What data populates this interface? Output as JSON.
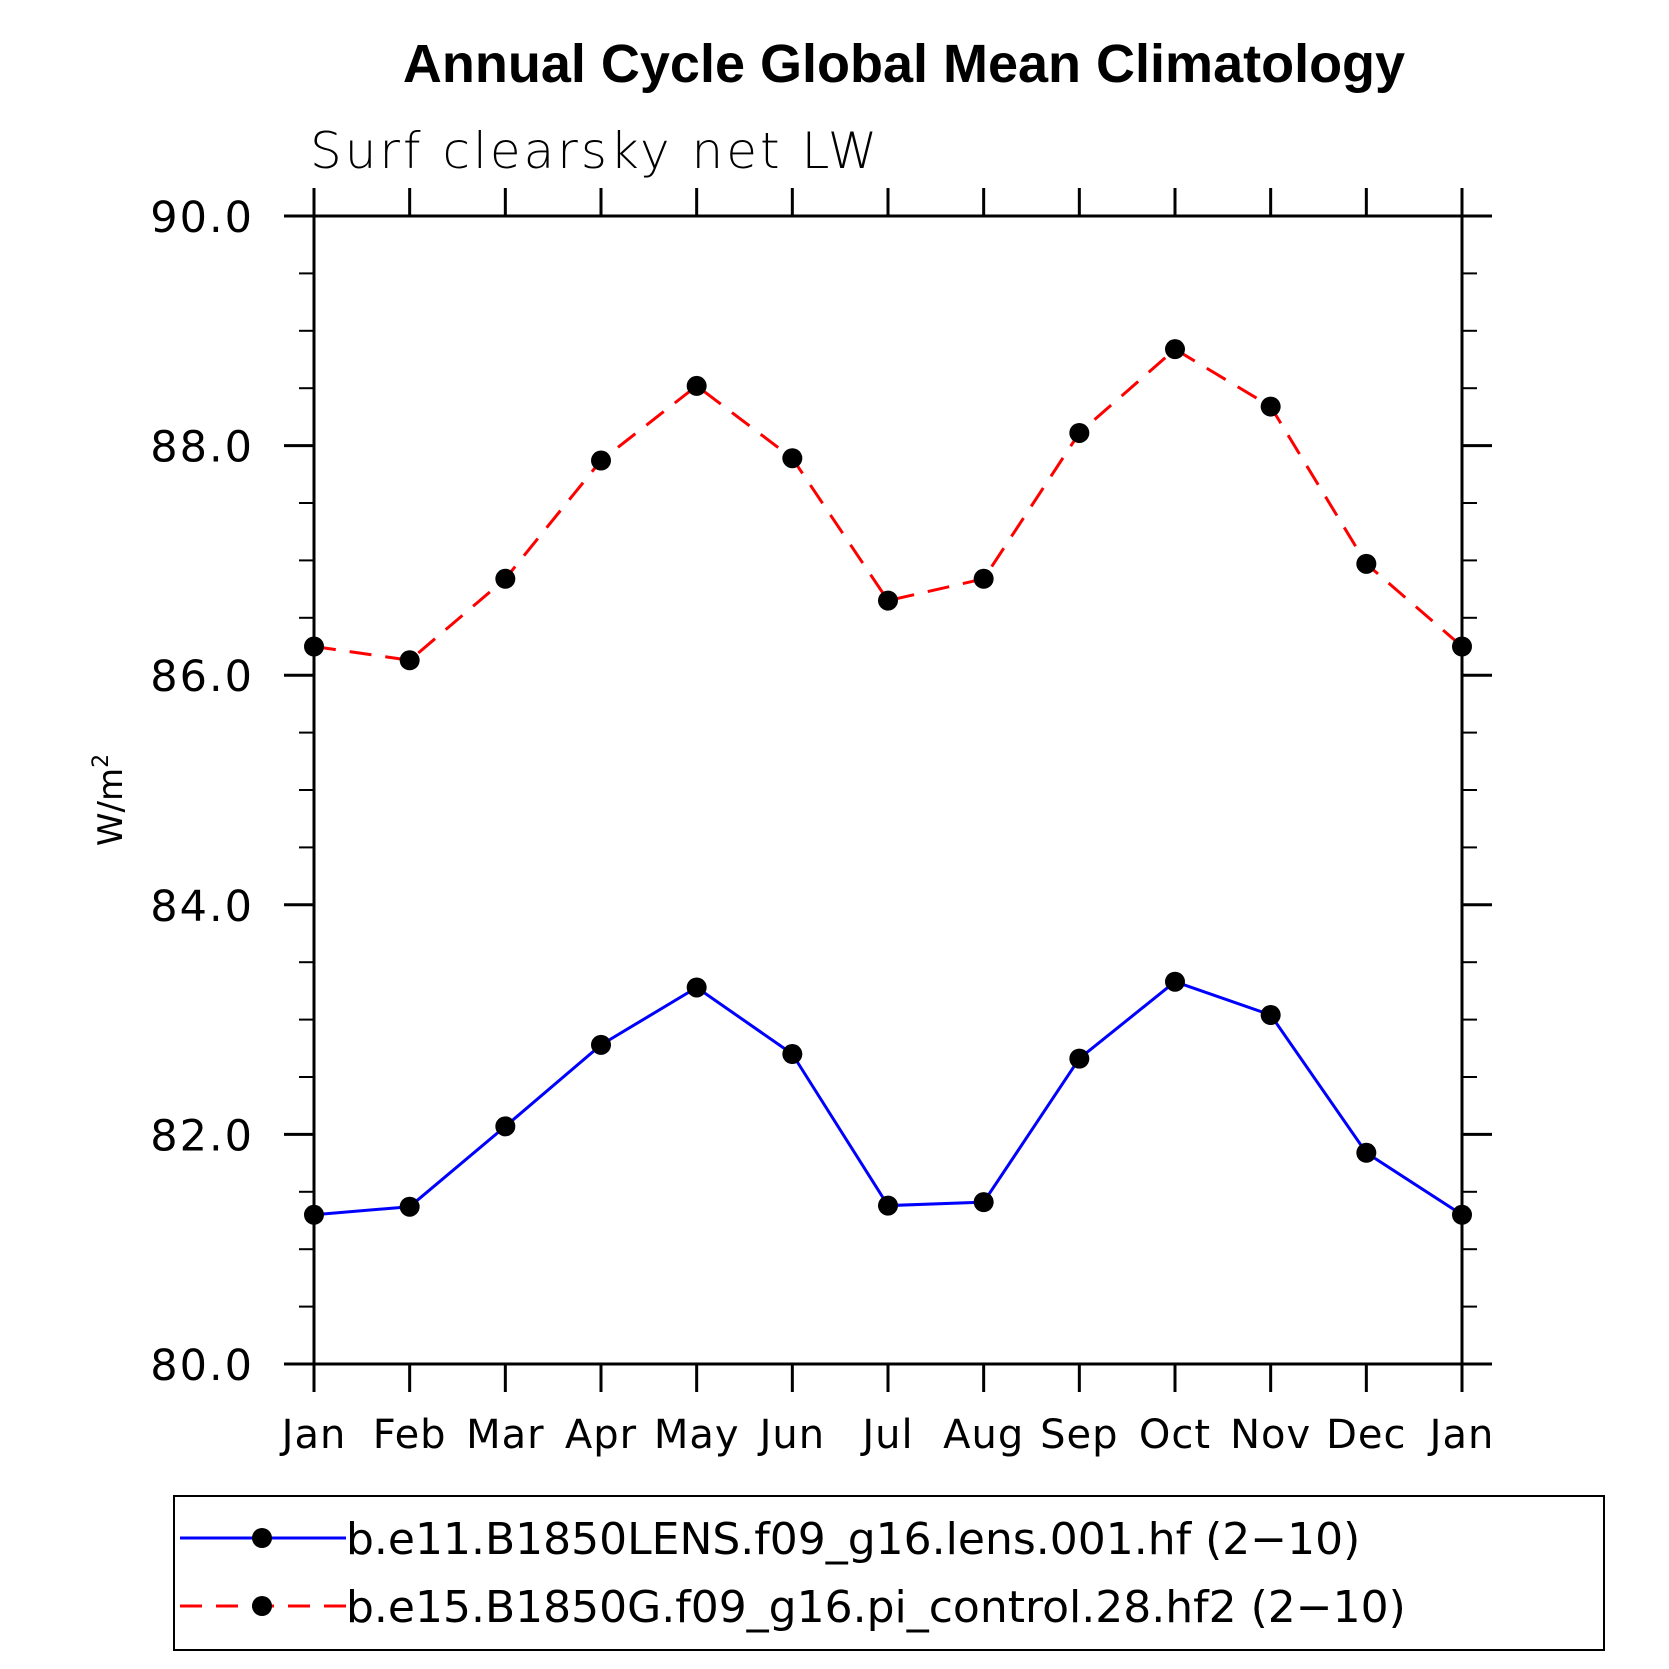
{
  "chart_data": {
    "type": "line",
    "title": "Annual Cycle Global Mean Climatology",
    "subtitle": "Surf clearsky net LW",
    "ylabel_base": "W/m",
    "ylabel_sup": "2",
    "xlabel": "",
    "ylim": [
      80.0,
      90.0
    ],
    "yticks": [
      "80.0",
      "82.0",
      "84.0",
      "86.0",
      "88.0",
      "90.0"
    ],
    "categories": [
      "Jan",
      "Feb",
      "Mar",
      "Apr",
      "May",
      "Jun",
      "Jul",
      "Aug",
      "Sep",
      "Oct",
      "Nov",
      "Dec",
      "Jan"
    ],
    "series": [
      {
        "name": "b.e11.B1850LENS.f09_g16.lens.001.hf (2−10)",
        "color": "#0000ff",
        "dash": "solid",
        "values": [
          81.3,
          81.37,
          82.07,
          82.78,
          83.28,
          82.7,
          81.38,
          81.41,
          82.66,
          83.33,
          83.04,
          81.84,
          81.3
        ]
      },
      {
        "name": "b.e15.B1850G.f09_g16.pi_control.28.hf2 (2−10)",
        "color": "#ff0000",
        "dash": "dashed",
        "values": [
          86.25,
          86.13,
          86.84,
          87.87,
          88.52,
          87.89,
          86.65,
          86.84,
          88.11,
          88.84,
          88.34,
          86.97,
          86.25
        ]
      }
    ],
    "grid": false,
    "legend_position": "bottom"
  }
}
